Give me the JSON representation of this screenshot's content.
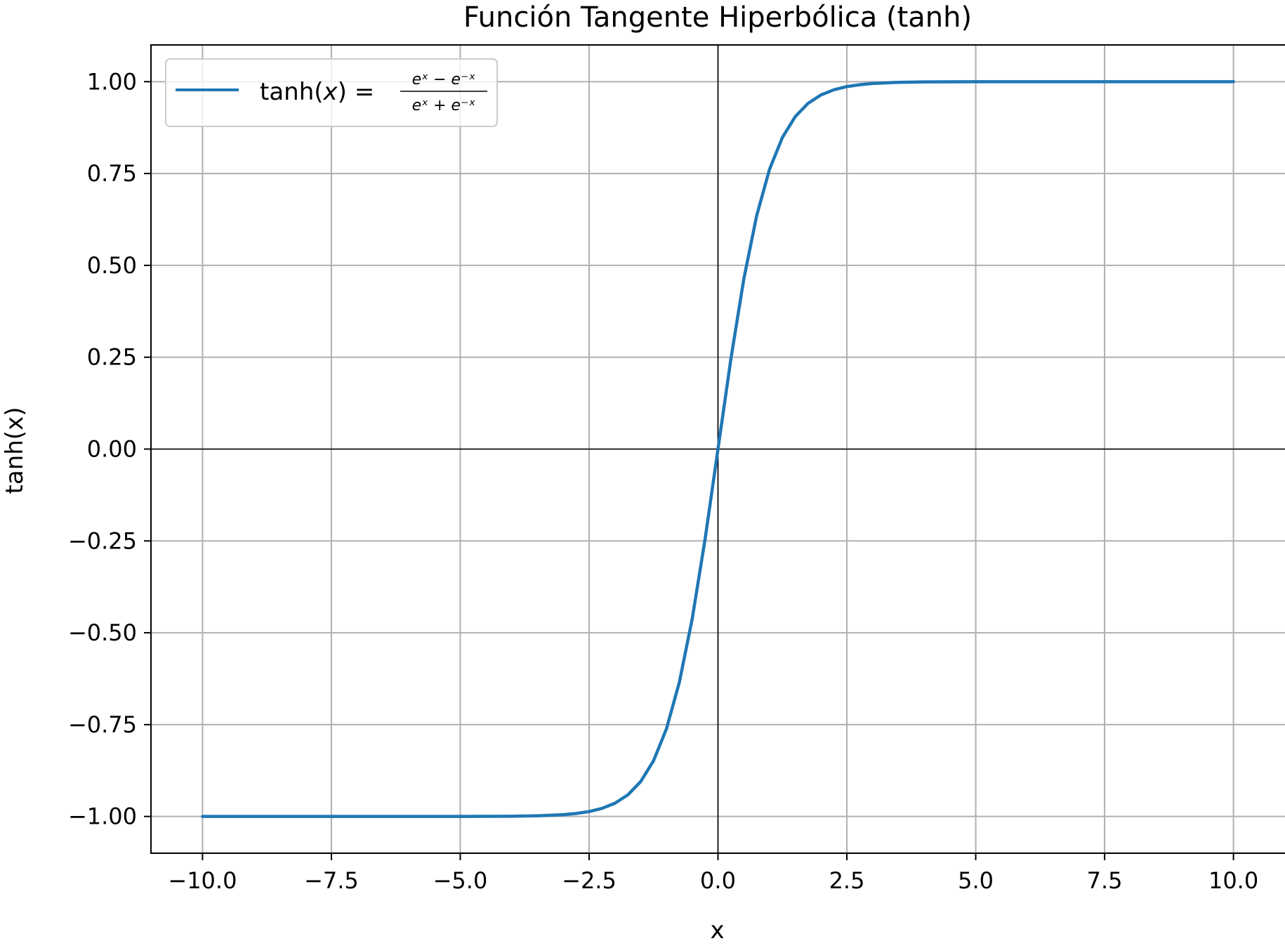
{
  "chart_data": {
    "type": "line",
    "title": "Función Tangente Hiperbólica (tanh)",
    "xlabel": "x",
    "ylabel": "tanh(x)",
    "xlim": [
      -11.0,
      11.0
    ],
    "ylim": [
      -1.1,
      1.1
    ],
    "grid": true,
    "legend_position": "top-left",
    "x_ticks": [
      -10.0,
      -7.5,
      -5.0,
      -2.5,
      0.0,
      2.5,
      5.0,
      7.5,
      10.0
    ],
    "x_tick_labels": [
      "−10.0",
      "−7.5",
      "−5.0",
      "−2.5",
      "0.0",
      "2.5",
      "5.0",
      "7.5",
      "10.0"
    ],
    "y_ticks": [
      1.0,
      0.75,
      0.5,
      0.25,
      0.0,
      -0.25,
      -0.5,
      -0.75,
      -1.0
    ],
    "y_tick_labels": [
      "1.00",
      "0.75",
      "0.50",
      "0.25",
      "0.00",
      "−0.25",
      "−0.50",
      "−0.75",
      "−1.00"
    ],
    "reference_lines": [
      {
        "orientation": "horizontal",
        "value": 0
      },
      {
        "orientation": "vertical",
        "value": 0
      }
    ],
    "series": [
      {
        "name": "tanh(x) = (e^x − e^−x)/(e^x + e^−x)",
        "color": "#1f77b4",
        "legend_parts": {
          "lhs": "tanh(",
          "var": "x",
          "rhs": ") =",
          "numerator": "eˣ − e⁻ˣ",
          "denominator": "eˣ + e⁻ˣ"
        },
        "x": [
          -10,
          -7.5,
          -5,
          -4,
          -3.5,
          -3,
          -2.75,
          -2.5,
          -2.25,
          -2,
          -1.75,
          -1.5,
          -1.25,
          -1,
          -0.75,
          -0.5,
          -0.25,
          0,
          0.25,
          0.5,
          0.75,
          1,
          1.25,
          1.5,
          1.75,
          2,
          2.25,
          2.5,
          2.75,
          3,
          3.5,
          4,
          5,
          7.5,
          10
        ],
        "y": [
          -1.0,
          -1.0,
          -0.9999,
          -0.9993,
          -0.9982,
          -0.9951,
          -0.9918,
          -0.9866,
          -0.978,
          -0.964,
          -0.9414,
          -0.9051,
          -0.8483,
          -0.7616,
          -0.6351,
          -0.4621,
          -0.2449,
          0.0,
          0.2449,
          0.4621,
          0.6351,
          0.7616,
          0.8483,
          0.9051,
          0.9414,
          0.964,
          0.978,
          0.9866,
          0.9918,
          0.9951,
          0.9982,
          0.9993,
          0.9999,
          1.0,
          1.0
        ]
      }
    ]
  }
}
